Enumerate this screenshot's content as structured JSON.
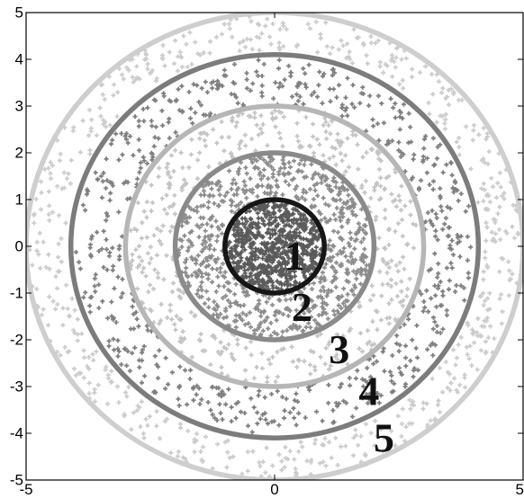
{
  "chart_data": {
    "type": "scatter",
    "title": "",
    "xlabel": "",
    "ylabel": "",
    "xlim": [
      -5,
      5
    ],
    "ylim": [
      -5,
      5
    ],
    "grid": false,
    "xticks": [
      -5,
      0,
      5
    ],
    "xtick_labels": [
      "-5",
      "0",
      "5"
    ],
    "yticks": [
      5,
      4,
      3,
      2,
      1,
      0,
      -1,
      -2,
      -3,
      -4,
      -5
    ],
    "ytick_labels": [
      "5",
      "4",
      "3",
      "2",
      "1",
      "0",
      "-1",
      "-2",
      "-3",
      "-4",
      "-5"
    ],
    "circles": [
      {
        "label": "1",
        "center": [
          0,
          0
        ],
        "radius": 1.0,
        "color": "#161616",
        "stroke_width_units": 0.1
      },
      {
        "label": "2",
        "center": [
          0,
          0
        ],
        "radius": 2.0,
        "color": "#8a8a8a",
        "stroke_width_units": 0.1
      },
      {
        "label": "3",
        "center": [
          0,
          0
        ],
        "radius": 3.0,
        "color": "#b6b6b6",
        "stroke_width_units": 0.1
      },
      {
        "label": "4",
        "center": [
          0,
          0
        ],
        "radius": 4.1,
        "color": "#7c7c7c",
        "stroke_width_units": 0.1
      },
      {
        "label": "5",
        "center": [
          0,
          0
        ],
        "radius": 5.0,
        "color": "#cecece",
        "stroke_width_units": 0.1
      }
    ],
    "label_positions": [
      {
        "text": "1",
        "x": 0.4,
        "y": -0.2
      },
      {
        "text": "2",
        "x": 0.55,
        "y": -1.3
      },
      {
        "text": "3",
        "x": 1.3,
        "y": -2.2
      },
      {
        "text": "4",
        "x": 1.9,
        "y": -3.1
      },
      {
        "text": "5",
        "x": 2.2,
        "y": -4.1
      }
    ],
    "point_bands": [
      {
        "band": "r 0-1",
        "rmin": 0.0,
        "rmax": 0.95,
        "color": "#5a5a5a",
        "approx_count": 700
      },
      {
        "band": "r 1-2",
        "rmin": 1.0,
        "rmax": 1.95,
        "color": "#8c8c8c",
        "approx_count": 700
      },
      {
        "band": "r 2-3",
        "rmin": 2.0,
        "rmax": 2.95,
        "color": "#c4c4c4",
        "approx_count": 450
      },
      {
        "band": "r 3-4",
        "rmin": 3.0,
        "rmax": 4.0,
        "color": "#7e7e7e",
        "approx_count": 650
      },
      {
        "band": "r 4-5",
        "rmin": 4.2,
        "rmax": 4.95,
        "color": "#cccccc",
        "approx_count": 600
      }
    ]
  }
}
